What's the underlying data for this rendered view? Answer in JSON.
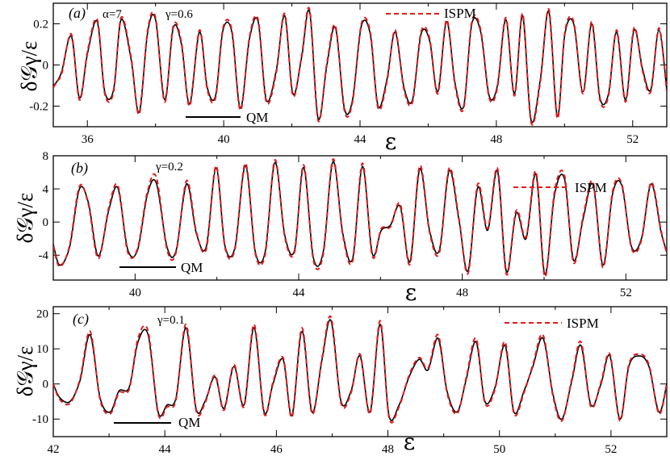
{
  "chart_data": [
    {
      "type": "line",
      "panel_label": "(a)",
      "params": [
        "α=7",
        "γ=0.6"
      ],
      "xlabel": "ε",
      "ylabel": "δ𝒢γ/ε",
      "xlim": [
        35,
        53
      ],
      "ylim": [
        -0.3,
        0.3
      ],
      "xticks": [
        36,
        40,
        44,
        48,
        52
      ],
      "yticks": [
        -0.2,
        0,
        0.2
      ],
      "ytick_labels": [
        "-0.2",
        "0",
        "0.2"
      ],
      "legend": {
        "qm_label": "QM",
        "ispm_label": "ISPM",
        "ispm_position": "top-right",
        "qm_position": "bottom-center"
      },
      "series": [
        {
          "name": "QM",
          "color": "#000000",
          "style": "solid",
          "x": [
            35.0,
            35.11,
            35.25,
            35.53,
            35.77,
            36.01,
            36.29,
            36.51,
            36.77,
            36.99,
            37.28,
            37.52,
            37.77,
            38.0,
            38.27,
            38.52,
            38.76,
            39.0,
            39.29,
            39.52,
            39.76,
            39.98,
            40.24,
            40.49,
            40.76,
            41.01,
            41.25,
            41.54,
            41.79,
            42.03,
            42.29,
            42.52,
            42.77,
            43.03,
            43.28,
            43.54,
            43.78,
            44.04,
            44.3,
            44.53,
            44.79,
            45.03,
            45.29,
            45.54,
            45.79,
            46.04,
            46.28,
            46.54,
            46.79,
            47.04,
            47.28,
            47.54,
            47.79,
            48.03,
            48.28,
            48.53,
            48.77,
            49.02,
            49.29,
            49.54,
            49.79,
            50.01,
            50.27,
            50.54,
            50.8,
            51.04,
            51.29,
            51.53,
            51.79,
            52.04,
            52.29,
            52.53,
            52.77,
            53.0
          ],
          "y": [
            -0.1,
            -0.08,
            -0.03,
            0.14,
            -0.16,
            0.06,
            0.21,
            -0.13,
            -0.12,
            0.22,
            0.03,
            -0.23,
            0.16,
            0.22,
            -0.17,
            0.18,
            0.1,
            -0.19,
            0.16,
            -0.11,
            -0.15,
            0.17,
            0.16,
            -0.21,
            0.13,
            0.21,
            -0.17,
            -0.03,
            0.24,
            -0.14,
            0.04,
            0.26,
            -0.26,
            0.0,
            0.18,
            -0.21,
            -0.17,
            0.19,
            0.15,
            -0.2,
            -0.07,
            0.16,
            -0.11,
            -0.17,
            0.15,
            0.12,
            -0.13,
            0.21,
            -0.09,
            -0.2,
            0.2,
            0.16,
            -0.15,
            -0.1,
            0.22,
            -0.14,
            0.24,
            -0.27,
            -0.07,
            0.26,
            -0.25,
            0.15,
            0.2,
            -0.13,
            0.2,
            -0.16,
            -0.14,
            0.16,
            -0.17,
            0.17,
            -0.02,
            -0.12,
            0.17,
            -0.12
          ]
        },
        {
          "name": "ISPM",
          "color": "#e31a1c",
          "style": "dashed",
          "x": [
            35.0,
            35.11,
            35.25,
            35.53,
            35.77,
            36.01,
            36.29,
            36.51,
            36.77,
            36.99,
            37.28,
            37.52,
            37.77,
            38.0,
            38.27,
            38.52,
            38.76,
            39.0,
            39.29,
            39.52,
            39.76,
            39.98,
            40.24,
            40.49,
            40.76,
            41.01,
            41.25,
            41.54,
            41.79,
            42.03,
            42.29,
            42.52,
            42.77,
            43.03,
            43.28,
            43.54,
            43.78,
            44.04,
            44.3,
            44.53,
            44.79,
            45.03,
            45.29,
            45.54,
            45.79,
            46.04,
            46.28,
            46.54,
            46.79,
            47.04,
            47.28,
            47.54,
            47.79,
            48.03,
            48.28,
            48.53,
            48.77,
            49.02,
            49.29,
            49.54,
            49.79,
            50.01,
            50.27,
            50.54,
            50.8,
            51.04,
            51.29,
            51.53,
            51.79,
            52.04,
            52.29,
            52.53,
            52.77,
            53.0
          ],
          "y": [
            -0.11,
            -0.08,
            -0.04,
            0.15,
            -0.17,
            0.07,
            0.22,
            -0.14,
            -0.13,
            0.23,
            0.04,
            -0.24,
            0.17,
            0.23,
            -0.18,
            0.19,
            0.11,
            -0.2,
            0.17,
            -0.12,
            -0.16,
            0.18,
            0.17,
            -0.22,
            0.14,
            0.22,
            -0.18,
            -0.04,
            0.25,
            -0.15,
            0.05,
            0.27,
            -0.27,
            0.01,
            0.19,
            -0.22,
            -0.18,
            0.2,
            0.16,
            -0.21,
            -0.08,
            0.17,
            -0.12,
            -0.18,
            0.16,
            0.13,
            -0.14,
            0.22,
            -0.1,
            -0.21,
            0.21,
            0.17,
            -0.16,
            -0.11,
            0.23,
            -0.15,
            0.25,
            -0.28,
            -0.08,
            0.27,
            -0.26,
            0.16,
            0.21,
            -0.14,
            0.21,
            -0.17,
            -0.15,
            0.17,
            -0.18,
            0.18,
            -0.03,
            -0.13,
            0.18,
            -0.13
          ]
        }
      ]
    },
    {
      "type": "line",
      "panel_label": "(b)",
      "params": [
        "γ=0.2"
      ],
      "xlabel": "ε",
      "ylabel": "δ𝒢γ/ε",
      "xlim": [
        38,
        53
      ],
      "ylim": [
        -7,
        8
      ],
      "xticks": [
        40,
        44,
        48,
        52
      ],
      "yticks": [
        -4,
        0,
        4,
        8
      ],
      "ytick_labels": [
        "-4",
        "0",
        "4",
        "8"
      ],
      "legend": {
        "qm_label": "QM",
        "ispm_label": "ISPM",
        "ispm_position": "top-right",
        "qm_position": "bottom-left"
      },
      "series": [
        {
          "name": "QM",
          "color": "#000000",
          "style": "solid",
          "x": [
            38.0,
            38.16,
            38.4,
            38.64,
            38.86,
            39.1,
            39.36,
            39.58,
            39.82,
            40.06,
            40.3,
            40.52,
            40.78,
            41.0,
            41.26,
            41.5,
            41.74,
            41.98,
            42.2,
            42.44,
            42.7,
            42.94,
            43.18,
            43.42,
            43.66,
            43.9,
            44.12,
            44.36,
            44.6,
            44.84,
            45.08,
            45.32,
            45.56,
            45.8,
            46.02,
            46.24,
            46.48,
            46.72,
            46.96,
            47.2,
            47.44,
            47.68,
            47.92,
            48.14,
            48.38,
            48.62,
            48.86,
            49.08,
            49.32,
            49.56,
            49.8,
            50.02,
            50.26,
            50.5,
            50.72,
            50.96,
            51.2,
            51.44,
            51.68,
            51.9,
            52.14,
            52.38,
            52.62,
            52.86,
            53.0
          ],
          "y": [
            -2.7,
            -5.2,
            -3.0,
            4.0,
            2.3,
            -4.1,
            1.5,
            4.1,
            -3.3,
            -3.4,
            3.3,
            4.7,
            -3.0,
            -3.5,
            4.6,
            -1.4,
            -3.0,
            6.5,
            -2.9,
            -3.1,
            6.8,
            -3.6,
            -3.6,
            7.2,
            -1.6,
            -3.4,
            6.6,
            -4.3,
            -3.6,
            7.3,
            -1.4,
            -4.4,
            6.7,
            -3.8,
            -1.0,
            -0.4,
            1.9,
            -4.8,
            6.4,
            -1.0,
            -3.4,
            6.2,
            0.2,
            -5.9,
            4.2,
            -1.0,
            6.2,
            -6.0,
            1.1,
            -2.0,
            5.8,
            -6.3,
            3.4,
            5.2,
            -4.6,
            0.5,
            4.5,
            -5.2,
            3.5,
            4.4,
            -3.0,
            -2.0,
            4.6,
            -1.2,
            -3.6
          ]
        },
        {
          "name": "ISPM",
          "color": "#e31a1c",
          "style": "dashed",
          "x": [
            38.0,
            38.16,
            38.4,
            38.64,
            38.86,
            39.1,
            39.36,
            39.58,
            39.82,
            40.06,
            40.3,
            40.52,
            40.78,
            41.0,
            41.26,
            41.5,
            41.74,
            41.98,
            42.2,
            42.44,
            42.7,
            42.94,
            43.18,
            43.42,
            43.66,
            43.9,
            44.12,
            44.36,
            44.6,
            44.84,
            45.08,
            45.32,
            45.56,
            45.8,
            46.02,
            46.24,
            46.48,
            46.72,
            46.96,
            47.2,
            47.44,
            47.68,
            47.92,
            48.14,
            48.38,
            48.62,
            48.86,
            49.08,
            49.32,
            49.56,
            49.8,
            50.02,
            50.26,
            50.5,
            50.72,
            50.96,
            51.2,
            51.44,
            51.68,
            51.9,
            52.14,
            52.38,
            52.62,
            52.86,
            53.0
          ],
          "y": [
            -2.9,
            -5.4,
            -2.8,
            4.3,
            2.1,
            -4.4,
            1.8,
            4.4,
            -3.6,
            -3.2,
            3.6,
            5.4,
            -3.3,
            -3.7,
            5.0,
            -1.2,
            -3.3,
            6.8,
            -3.1,
            -3.3,
            7.1,
            -3.8,
            -3.9,
            7.5,
            -1.8,
            -3.6,
            6.9,
            -4.6,
            -3.9,
            7.6,
            -1.6,
            -4.7,
            7.1,
            -4.1,
            -0.8,
            -0.6,
            2.2,
            -5.1,
            6.8,
            -1.2,
            -3.7,
            6.5,
            0.4,
            -6.2,
            4.6,
            -0.8,
            6.5,
            -6.3,
            1.4,
            -1.8,
            6.1,
            -6.6,
            3.8,
            5.6,
            -4.9,
            0.8,
            4.8,
            -5.5,
            3.8,
            4.6,
            -3.2,
            -2.2,
            4.8,
            -1.0,
            -3.8
          ]
        }
      ]
    },
    {
      "type": "line",
      "panel_label": "(c)",
      "params": [
        "γ=0.1"
      ],
      "xlabel": "ε",
      "ylabel": "δ𝒢γ/ε",
      "xlim": [
        42,
        53
      ],
      "ylim": [
        -15,
        22
      ],
      "xticks": [
        42,
        44,
        46,
        48,
        50,
        52
      ],
      "yticks": [
        -10,
        0,
        10,
        20
      ],
      "ytick_labels": [
        "-10",
        "0",
        "10",
        "20"
      ],
      "legend": {
        "qm_label": "QM",
        "ispm_label": "ISPM",
        "ispm_position": "top-right",
        "qm_position": "bottom-left"
      },
      "series": [
        {
          "name": "QM",
          "color": "#000000",
          "style": "solid",
          "x": [
            42.0,
            42.12,
            42.3,
            42.48,
            42.66,
            42.84,
            43.02,
            43.18,
            43.36,
            43.52,
            43.7,
            43.88,
            44.04,
            44.2,
            44.38,
            44.56,
            44.72,
            44.9,
            45.06,
            45.24,
            45.42,
            45.6,
            45.78,
            45.94,
            46.12,
            46.28,
            46.46,
            46.64,
            46.82,
            46.98,
            47.16,
            47.34,
            47.5,
            47.68,
            47.86,
            48.02,
            48.2,
            48.38,
            48.56,
            48.72,
            48.9,
            49.06,
            49.24,
            49.4,
            49.58,
            49.74,
            49.92,
            50.1,
            50.26,
            50.44,
            50.6,
            50.78,
            50.96,
            51.12,
            51.3,
            51.46,
            51.64,
            51.82,
            51.98,
            52.16,
            52.32,
            52.5,
            52.68,
            52.86,
            53.0
          ],
          "y": [
            0.0,
            -4.0,
            -5.0,
            1.0,
            14.0,
            -4.0,
            -8.0,
            -2.0,
            -1.0,
            12.0,
            14.0,
            -8.0,
            -6.0,
            -4.0,
            16.0,
            -7.0,
            -5.0,
            2.0,
            -7.0,
            5.0,
            -6.0,
            16.0,
            -8.0,
            0.0,
            7.0,
            -9.0,
            15.0,
            -8.0,
            7.0,
            18.0,
            -5.0,
            -2.0,
            8.0,
            -8.0,
            17.0,
            -9.0,
            -6.0,
            2.0,
            7.0,
            4.0,
            13.0,
            -2.0,
            -8.0,
            1.0,
            12.0,
            -5.0,
            -1.0,
            11.0,
            -8.0,
            -2.0,
            5.0,
            13.0,
            -3.0,
            -10.0,
            1.0,
            11.0,
            -6.0,
            0.0,
            8.0,
            -10.0,
            5.0,
            8.0,
            5.0,
            -8.0,
            0.0
          ]
        },
        {
          "name": "ISPM",
          "color": "#e31a1c",
          "style": "dashed",
          "x": [
            42.0,
            42.12,
            42.3,
            42.48,
            42.66,
            42.84,
            43.02,
            43.18,
            43.36,
            43.52,
            43.7,
            43.88,
            44.04,
            44.2,
            44.38,
            44.56,
            44.72,
            44.9,
            45.06,
            45.24,
            45.42,
            45.6,
            45.78,
            45.94,
            46.12,
            46.28,
            46.46,
            46.64,
            46.82,
            46.98,
            47.16,
            47.34,
            47.5,
            47.68,
            47.86,
            48.02,
            48.2,
            48.38,
            48.56,
            48.72,
            48.9,
            49.06,
            49.24,
            49.4,
            49.58,
            49.74,
            49.92,
            50.1,
            50.26,
            50.44,
            50.6,
            50.78,
            50.96,
            51.12,
            51.3,
            51.46,
            51.64,
            51.82,
            51.98,
            52.16,
            52.32,
            52.5,
            52.68,
            52.86,
            53.0
          ],
          "y": [
            0.0,
            -4.5,
            -5.5,
            1.5,
            15.0,
            -4.5,
            -8.5,
            -2.5,
            -1.5,
            13.0,
            15.0,
            -8.5,
            -6.5,
            -4.5,
            17.0,
            -7.5,
            -5.5,
            2.5,
            -7.5,
            5.5,
            -6.5,
            17.0,
            -8.5,
            0.5,
            7.5,
            -9.5,
            16.0,
            -8.5,
            7.5,
            19.0,
            -5.5,
            -2.5,
            8.5,
            -8.5,
            18.0,
            -9.5,
            -6.5,
            2.5,
            7.5,
            4.5,
            14.0,
            -2.5,
            -8.5,
            1.5,
            13.0,
            -5.5,
            -1.5,
            12.0,
            -8.5,
            -2.5,
            5.5,
            14.0,
            -3.5,
            -10.5,
            1.5,
            12.0,
            -6.5,
            0.5,
            8.5,
            -10.5,
            5.5,
            8.5,
            5.5,
            -8.5,
            0.0
          ]
        }
      ]
    }
  ]
}
